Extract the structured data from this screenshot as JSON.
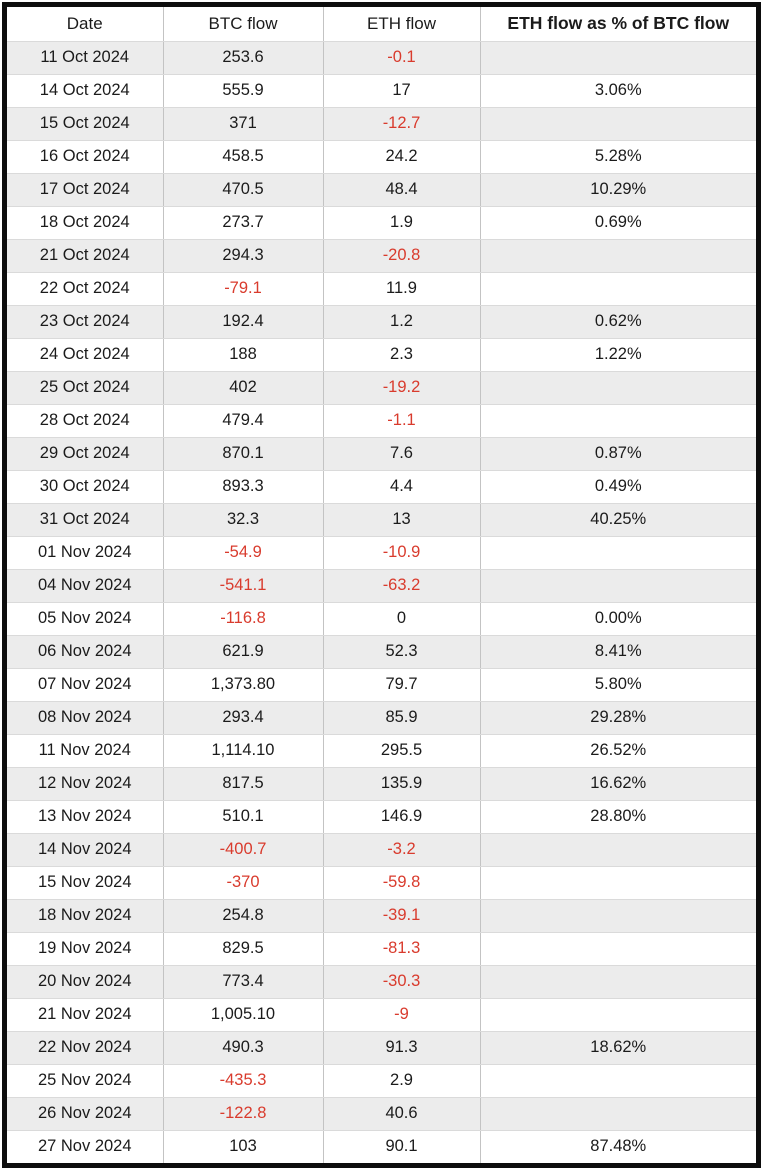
{
  "chart_data": {
    "type": "table",
    "columns": [
      "Date",
      "BTC flow",
      "ETH flow",
      "ETH flow as % of BTC flow"
    ],
    "rows": [
      [
        "11 Oct 2024",
        "253.6",
        "-0.1",
        ""
      ],
      [
        "14 Oct 2024",
        "555.9",
        "17",
        "3.06%"
      ],
      [
        "15 Oct 2024",
        "371",
        "-12.7",
        ""
      ],
      [
        "16 Oct 2024",
        "458.5",
        "24.2",
        "5.28%"
      ],
      [
        "17 Oct 2024",
        "470.5",
        "48.4",
        "10.29%"
      ],
      [
        "18 Oct 2024",
        "273.7",
        "1.9",
        "0.69%"
      ],
      [
        "21 Oct 2024",
        "294.3",
        "-20.8",
        ""
      ],
      [
        "22 Oct 2024",
        "-79.1",
        "11.9",
        ""
      ],
      [
        "23 Oct 2024",
        "192.4",
        "1.2",
        "0.62%"
      ],
      [
        "24 Oct 2024",
        "188",
        "2.3",
        "1.22%"
      ],
      [
        "25 Oct 2024",
        "402",
        "-19.2",
        ""
      ],
      [
        "28 Oct 2024",
        "479.4",
        "-1.1",
        ""
      ],
      [
        "29 Oct 2024",
        "870.1",
        "7.6",
        "0.87%"
      ],
      [
        "30 Oct 2024",
        "893.3",
        "4.4",
        "0.49%"
      ],
      [
        "31 Oct 2024",
        "32.3",
        "13",
        "40.25%"
      ],
      [
        "01 Nov 2024",
        "-54.9",
        "-10.9",
        ""
      ],
      [
        "04 Nov 2024",
        "-541.1",
        "-63.2",
        ""
      ],
      [
        "05 Nov 2024",
        "-116.8",
        "0",
        "0.00%"
      ],
      [
        "06 Nov 2024",
        "621.9",
        "52.3",
        "8.41%"
      ],
      [
        "07 Nov 2024",
        "1,373.80",
        "79.7",
        "5.80%"
      ],
      [
        "08 Nov 2024",
        "293.4",
        "85.9",
        "29.28%"
      ],
      [
        "11 Nov 2024",
        "1,114.10",
        "295.5",
        "26.52%"
      ],
      [
        "12 Nov 2024",
        "817.5",
        "135.9",
        "16.62%"
      ],
      [
        "13 Nov 2024",
        "510.1",
        "146.9",
        "28.80%"
      ],
      [
        "14 Nov 2024",
        "-400.7",
        "-3.2",
        ""
      ],
      [
        "15 Nov 2024",
        "-370",
        "-59.8",
        ""
      ],
      [
        "18 Nov 2024",
        "254.8",
        "-39.1",
        ""
      ],
      [
        "19 Nov 2024",
        "829.5",
        "-81.3",
        ""
      ],
      [
        "20 Nov 2024",
        "773.4",
        "-30.3",
        ""
      ],
      [
        "21 Nov 2024",
        "1,005.10",
        "-9",
        ""
      ],
      [
        "22 Nov 2024",
        "490.3",
        "91.3",
        "18.62%"
      ],
      [
        "25 Nov 2024",
        "-435.3",
        "2.9",
        ""
      ],
      [
        "26 Nov 2024",
        "-122.8",
        "40.6",
        ""
      ],
      [
        "27 Nov 2024",
        "103",
        "90.1",
        "87.48%"
      ]
    ]
  },
  "colors": {
    "negative_text": "#d93b2d",
    "default_text": "#1b1b1b",
    "alt_row_background": "#ececec",
    "vertical_gridline": "#c3c3c3",
    "horizontal_gridline": "#dadada",
    "outer_frame": "#0d0d0d"
  }
}
